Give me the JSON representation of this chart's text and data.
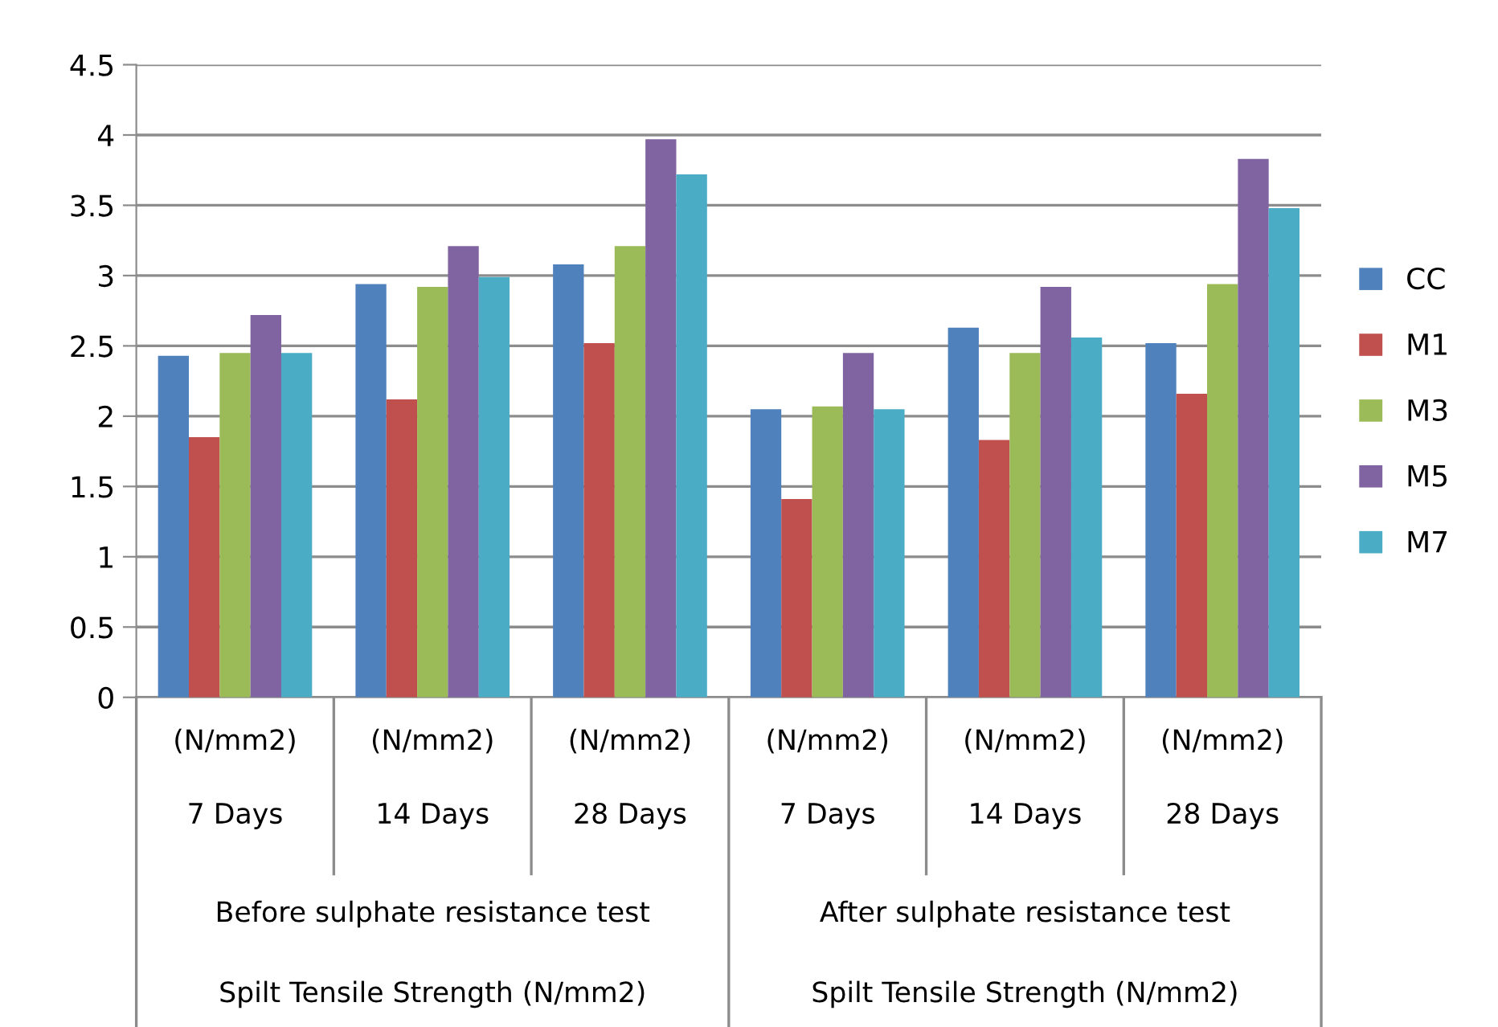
{
  "chart_data": {
    "type": "bar",
    "categories": [
      "(N/mm2)\n7 Days",
      "(N/mm2)\n14 Days",
      "(N/mm2)\n28 Days",
      "(N/mm2)\n7 Days",
      "(N/mm2)\n14 Days",
      "(N/mm2)\n28 Days"
    ],
    "series": [
      {
        "name": "CC",
        "color": "#4f81bd",
        "values": [
          2.43,
          2.94,
          3.08,
          2.05,
          2.63,
          2.52
        ]
      },
      {
        "name": "M1",
        "color": "#c0504d",
        "values": [
          1.85,
          2.12,
          2.52,
          1.41,
          1.83,
          2.16
        ]
      },
      {
        "name": "M3",
        "color": "#9bbb59",
        "values": [
          2.45,
          2.92,
          3.21,
          2.07,
          2.45,
          2.94
        ]
      },
      {
        "name": "M5",
        "color": "#8064a2",
        "values": [
          2.72,
          3.21,
          3.97,
          2.45,
          2.92,
          3.83
        ]
      },
      {
        "name": "M7",
        "color": "#4bacc6",
        "values": [
          2.45,
          2.99,
          3.72,
          2.05,
          2.56,
          3.48
        ]
      }
    ],
    "annotations": [
      "Before sulphate resistance test",
      "After sulphate resistance test",
      "Spilt Tensile Strength (N/mm2)",
      "Spilt Tensile Strength (N/mm2)"
    ],
    "ylim": [
      0,
      4.5
    ],
    "yticks": [
      0,
      0.5,
      1,
      1.5,
      2,
      2.5,
      3,
      3.5,
      4,
      4.5
    ],
    "grid": "y",
    "legend": "right"
  }
}
